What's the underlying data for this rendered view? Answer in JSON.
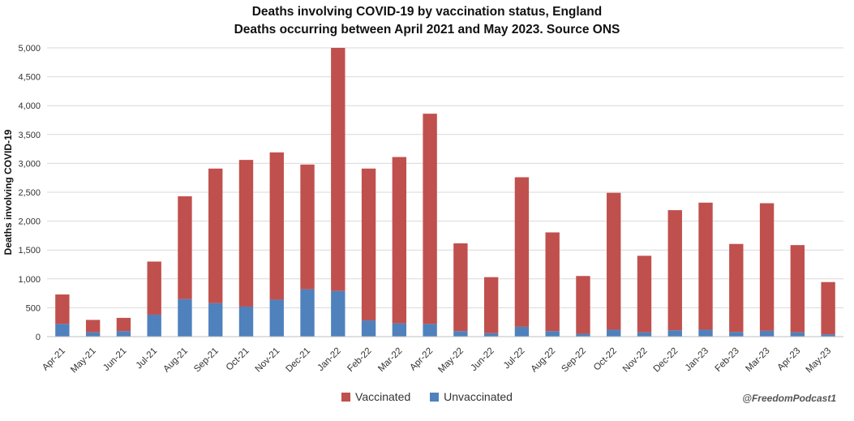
{
  "chart_data": {
    "type": "bar",
    "stacked": true,
    "title": "Deaths involving COVID-19 by vaccination status, England",
    "subtitle": "Deaths occurring between April 2021 and May 2023. Source ONS",
    "xlabel": "",
    "ylabel": "Deaths involving COVID-19",
    "ylim": [
      0,
      5000
    ],
    "yticks": [
      "0",
      "500",
      "1,000",
      "1,500",
      "2,000",
      "2,500",
      "3,000",
      "3,500",
      "4,000",
      "4,500",
      "5,000"
    ],
    "ytick_values": [
      0,
      500,
      1000,
      1500,
      2000,
      2500,
      3000,
      3500,
      4000,
      4500,
      5000
    ],
    "grid": true,
    "legend_position": "bottom",
    "categories": [
      "Apr-21",
      "May-21",
      "Jun-21",
      "Jul-21",
      "Aug-21",
      "Sep-21",
      "Oct-21",
      "Nov-21",
      "Dec-21",
      "Jan-22",
      "Feb-22",
      "Mar-22",
      "Apr-22",
      "May-22",
      "Jun-22",
      "Jul-22",
      "Aug-22",
      "Sep-22",
      "Oct-22",
      "Nov-22",
      "Dec-22",
      "Jan-23",
      "Feb-23",
      "Mar-23",
      "Apr-23",
      "May-23"
    ],
    "series": [
      {
        "name": "Unvaccinated",
        "color": "#4f81bd",
        "values": [
          220,
          75,
          95,
          380,
          650,
          580,
          520,
          640,
          820,
          790,
          280,
          230,
          220,
          95,
          60,
          170,
          95,
          50,
          120,
          75,
          110,
          120,
          80,
          100,
          75,
          40
        ]
      },
      {
        "name": "Vaccinated",
        "color": "#c0504d",
        "values": [
          510,
          215,
          230,
          920,
          1780,
          2330,
          2540,
          2550,
          2160,
          4210,
          2630,
          2880,
          3640,
          1520,
          970,
          2590,
          1710,
          1000,
          2370,
          1325,
          2080,
          2200,
          1525,
          2210,
          1510,
          905
        ]
      }
    ]
  },
  "legend": {
    "vaccinated_label": "Vaccinated",
    "unvaccinated_label": "Unvaccinated"
  },
  "credit": "@FreedomPodcast1",
  "colors": {
    "vaccinated": "#c0504d",
    "unvaccinated": "#4f81bd",
    "grid": "#d9d9d9"
  }
}
